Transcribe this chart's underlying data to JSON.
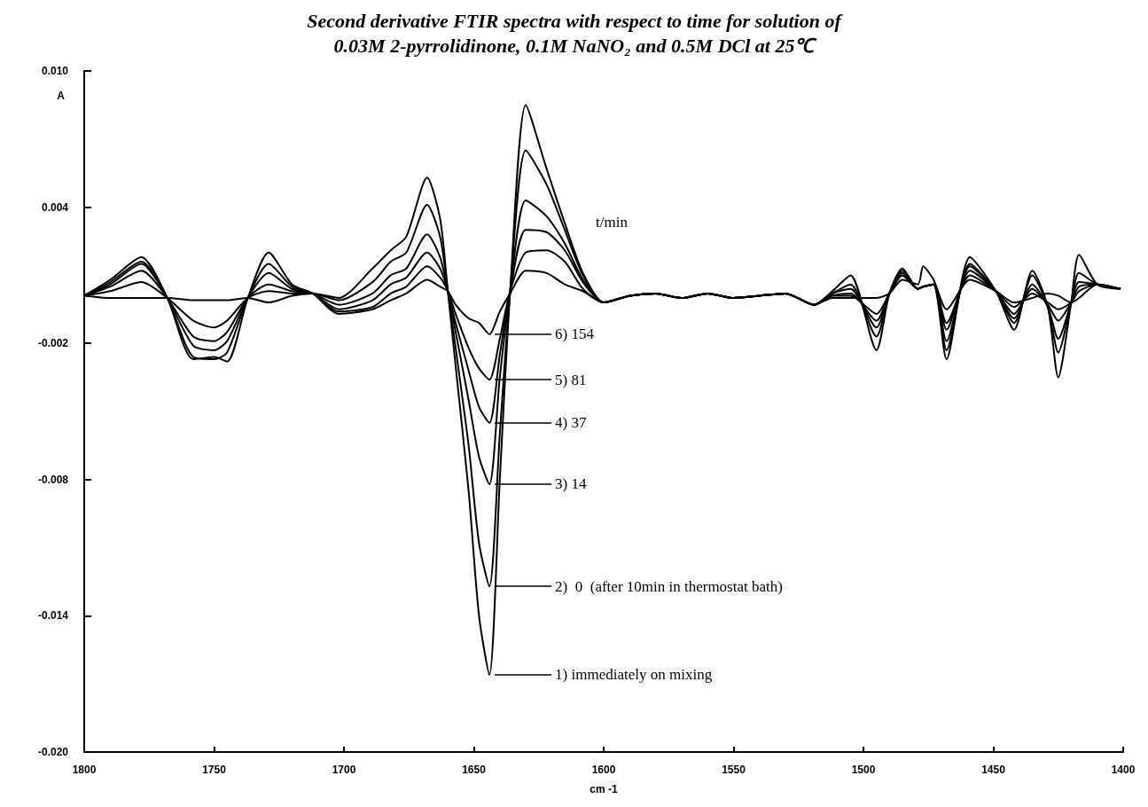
{
  "chart_data": {
    "type": "line",
    "title": "Second derivative FTIR spectra with respect to time for solution of\n0.03M 2-pyrrolidinone, 0.1M NaNO₂ and 0.5M DCl at 25℃",
    "xlabel": "cm -1",
    "ylabel": "A",
    "legend_title": "t/min",
    "x": [
      1800,
      1790,
      1778,
      1768,
      1758,
      1750,
      1745,
      1737,
      1729,
      1720,
      1712,
      1702,
      1689,
      1682,
      1676,
      1668,
      1663,
      1660,
      1657,
      1652,
      1648,
      1644,
      1640,
      1636,
      1630,
      1622,
      1615,
      1608,
      1600,
      1590,
      1580,
      1570,
      1560,
      1550,
      1540,
      1530,
      1519,
      1512,
      1505,
      1495,
      1490,
      1485,
      1479,
      1477,
      1473,
      1468,
      1459,
      1449,
      1442,
      1435,
      1429,
      1425,
      1420,
      1417,
      1410,
      1401
    ],
    "series": [
      {
        "name": "1) immediately on mixing",
        "color": "#000000",
        "values": [
          0.0001,
          0.0,
          0.0,
          0.0,
          -0.0001,
          -0.0001,
          -0.0001,
          0.0,
          -0.0002,
          0.0001,
          0.0002,
          0.0,
          0.0013,
          0.0021,
          0.0027,
          0.0053,
          0.0035,
          0.0003,
          -0.003,
          -0.0085,
          -0.014,
          -0.0166,
          -0.008,
          0.0003,
          0.0085,
          0.0057,
          0.0033,
          0.0011,
          -0.0002,
          0.0001,
          0.0002,
          0.0,
          0.0002,
          0.0,
          0.0001,
          0.0002,
          -0.0003,
          0.0,
          0.0,
          0.0,
          0.0002,
          0.0008,
          0.0006,
          0.0014,
          0.0008,
          -0.0005,
          0.0008,
          0.0003,
          -0.0002,
          0.0,
          0.0002,
          0.0001,
          -0.0002,
          0.0,
          0.0006,
          0.0004
        ]
      },
      {
        "name": "2)  0  (after 10min in thermostat bath)",
        "color": "#000000",
        "values": [
          0.0001,
          0.0003,
          0.0007,
          0.0,
          -0.001,
          -0.0013,
          -0.001,
          0.0,
          0.0003,
          0.0002,
          0.0002,
          -0.0001,
          0.0007,
          0.0016,
          0.002,
          0.0041,
          0.0027,
          0.0003,
          -0.0022,
          -0.0065,
          -0.0108,
          -0.0127,
          -0.006,
          0.0003,
          0.0065,
          0.005,
          0.003,
          0.001,
          -0.0002,
          0.0001,
          0.0002,
          0.0,
          0.0002,
          0.0,
          0.0001,
          0.0002,
          -0.0003,
          0.0001,
          0.0001,
          -0.0007,
          0.0002,
          0.001,
          0.0004,
          0.0005,
          0.0006,
          -0.0011,
          0.001,
          0.0003,
          -0.0004,
          0.0002,
          -0.0002,
          -0.0005,
          -0.0002,
          0.0003,
          0.0006,
          0.0004
        ]
      },
      {
        "name": "3) 14",
        "color": "#000000",
        "values": [
          0.0001,
          0.0005,
          0.0012,
          0.0,
          -0.0017,
          -0.0019,
          -0.0015,
          0.0,
          0.0006,
          0.0003,
          0.0002,
          -0.0003,
          0.0002,
          0.001,
          0.0013,
          0.0028,
          0.0018,
          0.0003,
          -0.0015,
          -0.0045,
          -0.007,
          -0.0082,
          -0.0035,
          0.0003,
          0.0043,
          0.0036,
          0.0024,
          0.0008,
          -0.0002,
          0.0001,
          0.0002,
          0.0,
          0.0002,
          0.0,
          0.0001,
          0.0002,
          -0.0003,
          0.0001,
          0.0002,
          -0.001,
          0.0002,
          0.001,
          0.0004,
          0.0005,
          0.0006,
          -0.0014,
          0.0012,
          0.0003,
          -0.0007,
          0.0004,
          -0.0003,
          -0.001,
          -0.0002,
          0.0005,
          0.0006,
          0.0004
        ]
      },
      {
        "name": "4) 37",
        "color": "#000000",
        "values": [
          0.0001,
          0.0006,
          0.0015,
          0.0,
          -0.0021,
          -0.0023,
          -0.0019,
          0.0,
          0.0011,
          0.0004,
          0.0002,
          -0.0005,
          -0.0001,
          0.0006,
          0.0009,
          0.002,
          0.0013,
          0.0003,
          -0.0011,
          -0.0032,
          -0.0048,
          -0.0055,
          -0.0025,
          0.0003,
          0.003,
          0.0029,
          0.0021,
          0.0007,
          -0.0002,
          0.0001,
          0.0002,
          0.0,
          0.0002,
          0.0,
          0.0001,
          0.0002,
          -0.0003,
          0.0002,
          0.0004,
          -0.0013,
          0.0002,
          0.0011,
          0.0004,
          0.0005,
          0.0006,
          -0.0019,
          0.0014,
          0.0003,
          -0.0009,
          0.0006,
          -0.0004,
          -0.0018,
          -0.0002,
          0.0007,
          0.0006,
          0.0004
        ]
      },
      {
        "name": "5) 81",
        "color": "#000000",
        "values": [
          0.0001,
          0.0007,
          0.0016,
          0.0,
          -0.0026,
          -0.0027,
          -0.0024,
          0.0,
          0.0015,
          0.0005,
          0.0002,
          -0.0006,
          -0.0004,
          0.0002,
          0.0005,
          0.0014,
          0.0009,
          0.0003,
          -0.0007,
          -0.0022,
          -0.0031,
          -0.0036,
          -0.0018,
          0.0003,
          0.002,
          0.0021,
          0.0016,
          0.0004,
          -0.0002,
          0.0001,
          0.0002,
          0.0,
          0.0002,
          0.0,
          0.0001,
          0.0002,
          -0.0003,
          0.0002,
          0.0006,
          -0.0017,
          0.0002,
          0.0012,
          0.0004,
          0.0005,
          0.0006,
          -0.0023,
          0.0015,
          0.0003,
          -0.0011,
          0.001,
          -0.0004,
          -0.0024,
          -0.0002,
          0.0011,
          0.0006,
          0.0004
        ]
      },
      {
        "name": "6) 154",
        "color": "#000000",
        "values": [
          0.0001,
          0.0008,
          0.0018,
          0.0,
          -0.0027,
          -0.0026,
          -0.0028,
          0.0,
          0.002,
          0.0006,
          0.0002,
          -0.0007,
          -0.0005,
          -0.0001,
          0.0002,
          0.0008,
          0.0005,
          0.0003,
          -0.0003,
          -0.0009,
          -0.0011,
          -0.0016,
          -0.0006,
          0.0002,
          0.0012,
          0.0011,
          0.0006,
          0.0003,
          -0.0002,
          0.0001,
          0.0002,
          0.0,
          0.0002,
          0.0,
          0.0001,
          0.0002,
          -0.0003,
          0.0003,
          0.001,
          -0.0023,
          0.0002,
          0.0013,
          0.0004,
          0.0005,
          0.0006,
          -0.0027,
          0.0018,
          0.0003,
          -0.0014,
          0.0012,
          -0.0004,
          -0.0035,
          -0.0002,
          0.0019,
          0.0006,
          0.0004
        ]
      }
    ],
    "xlim": [
      1800,
      1400
    ],
    "xticks": [
      1800,
      1750,
      1700,
      1650,
      1600,
      1550,
      1500,
      1450,
      1400
    ],
    "ylim": [
      -0.02,
      0.01
    ],
    "yticks": [
      {
        "value": -0.02,
        "label": "-0.020"
      },
      {
        "value": -0.014,
        "label": "-0.014"
      },
      {
        "value": -0.008,
        "label": "-0.008"
      },
      {
        "value": -0.002,
        "label": "-0.002"
      },
      {
        "value": 0.004,
        "label": "0.004"
      },
      {
        "value": 0.01,
        "label": "0.010"
      }
    ],
    "grid": false,
    "legend": "center",
    "marker": "none",
    "line_style": "solid"
  }
}
